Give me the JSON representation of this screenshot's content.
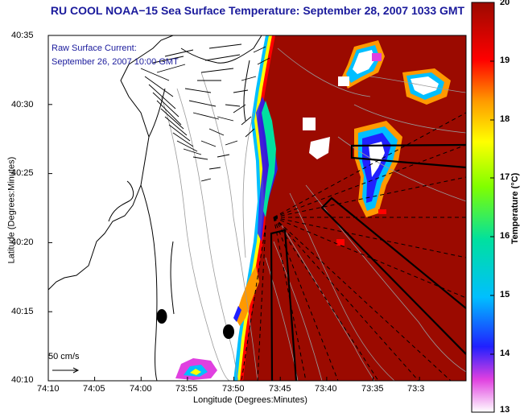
{
  "title": "RU COOL  NOAA−15  Sea Surface Temperature:  September 28, 2007 1033 GMT",
  "annotation": {
    "line1": "Raw Surface Current:",
    "line2": "September 26, 2007 10:00 GMT"
  },
  "axes": {
    "xlabel": "Longitude (Degrees:Minutes)",
    "ylabel": "Latitude (Degrees:Minutes)",
    "xticks": [
      "74:10",
      "74:05",
      "74:00",
      "73:55",
      "73:50",
      "73:45",
      "73:40",
      "73:35",
      "73:3"
    ],
    "yticks": [
      "40:35",
      "40:30",
      "40:25",
      "40:20",
      "40:15",
      "40:10"
    ]
  },
  "colorbar": {
    "label": "Temperature (°C)",
    "ticks": [
      "20",
      "19",
      "18",
      "17",
      "16",
      "15",
      "14",
      "13"
    ],
    "min": 13,
    "max": 20
  },
  "scale_label": "50 cm/s",
  "colors": {
    "sst_warm": "#9b0a00",
    "title_blue": "#1a1a9c",
    "coast": "#000000",
    "contour": "#9a9a9a"
  }
}
